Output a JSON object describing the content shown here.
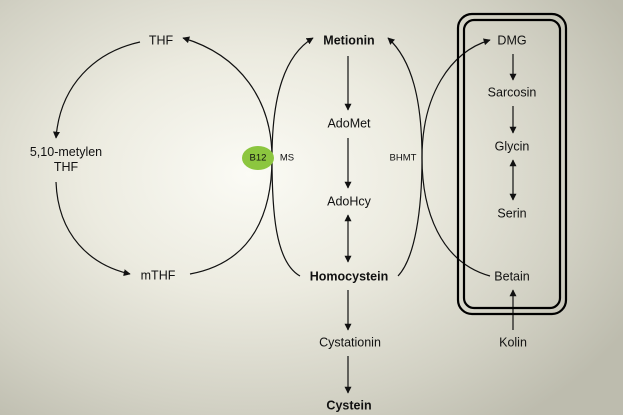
{
  "nodes": {
    "thf": "THF",
    "methylene_line1": "5,10-metylen",
    "methylene_line2": "THF",
    "mthf": "mTHF",
    "metionin": "Metionin",
    "adomet": "AdoMet",
    "adohcy": "AdoHcy",
    "homocystein": "Homocystein",
    "cystationin": "Cystationin",
    "cystein": "Cystein",
    "dmg": "DMG",
    "sarcosin": "Sarcosin",
    "glycin": "Glycin",
    "serin": "Serin",
    "betain": "Betain",
    "kolin": "Kolin"
  },
  "enzymes": {
    "b12": "B12",
    "ms": "MS",
    "bhmt": "BHMT"
  },
  "colors": {
    "b12_badge": "#8cc63f",
    "line": "#111111",
    "box_border": "#000000"
  }
}
